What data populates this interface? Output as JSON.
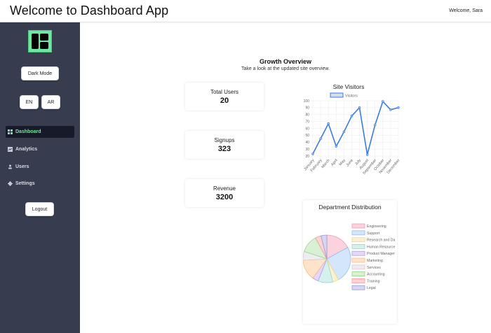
{
  "header": {
    "title": "Welcome to Dashboard App",
    "welcome": "Welcome, Sara"
  },
  "sidebar": {
    "logo_icon": "dashboard-layout-icon",
    "dark_mode_label": "Dark Mode",
    "lang_en": "EN",
    "lang_ar": "AR",
    "items": [
      {
        "label": "Dashboard",
        "icon": "grid-icon",
        "active": true
      },
      {
        "label": "Analytics",
        "icon": "chart-icon",
        "active": false
      },
      {
        "label": "Users",
        "icon": "user-icon",
        "active": false
      },
      {
        "label": "Settings",
        "icon": "gear-icon",
        "active": false
      }
    ],
    "logout_label": "Logout"
  },
  "main": {
    "title": "Growth Overview",
    "subtitle": "Take a look at the updated site overview.",
    "cards": [
      {
        "label": "Total Users",
        "value": "20"
      },
      {
        "label": "Signups",
        "value": "323"
      },
      {
        "label": "Revenue",
        "value": "3200"
      }
    ]
  },
  "chart_data": [
    {
      "type": "line",
      "title": "Site Visitors",
      "legend": [
        "Visitors"
      ],
      "categories": [
        "January",
        "February",
        "March",
        "April",
        "May",
        "June",
        "July",
        "August",
        "September",
        "October",
        "November",
        "December"
      ],
      "series": [
        {
          "name": "Visitors",
          "values": [
            23,
            45,
            67,
            34,
            55,
            78,
            90,
            22,
            65,
            99,
            87,
            90
          ],
          "color": "#3b7be0"
        }
      ],
      "ylim": [
        20,
        100
      ],
      "yticks": [
        20,
        30,
        40,
        50,
        60,
        70,
        80,
        90,
        100
      ],
      "grid": true
    },
    {
      "type": "pie",
      "title": "Department Distribution",
      "labels": [
        "Engineering",
        "Support",
        "Research and Da",
        "Human Resource",
        "Product Manager",
        "Marketing",
        "Services",
        "Accounting",
        "Training",
        "Legal"
      ],
      "values": [
        17,
        25,
        4,
        10,
        4,
        14,
        6,
        12,
        4,
        4
      ],
      "colors": [
        "#fbd3de",
        "#d4e6fb",
        "#fdf0cf",
        "#d5f1ed",
        "#e5d6fb",
        "#fde3c9",
        "#ededf0",
        "#d8f0d3",
        "#fcd4d4",
        "#d6d6ee"
      ],
      "borders": [
        "#f59ab4",
        "#8ec0f2",
        "#f7d88a",
        "#8fd9cd",
        "#b89af5",
        "#f7bc84",
        "#d9c9d6",
        "#95d48a",
        "#f59a9a",
        "#9a9ad6"
      ],
      "legend_position": "right"
    }
  ]
}
